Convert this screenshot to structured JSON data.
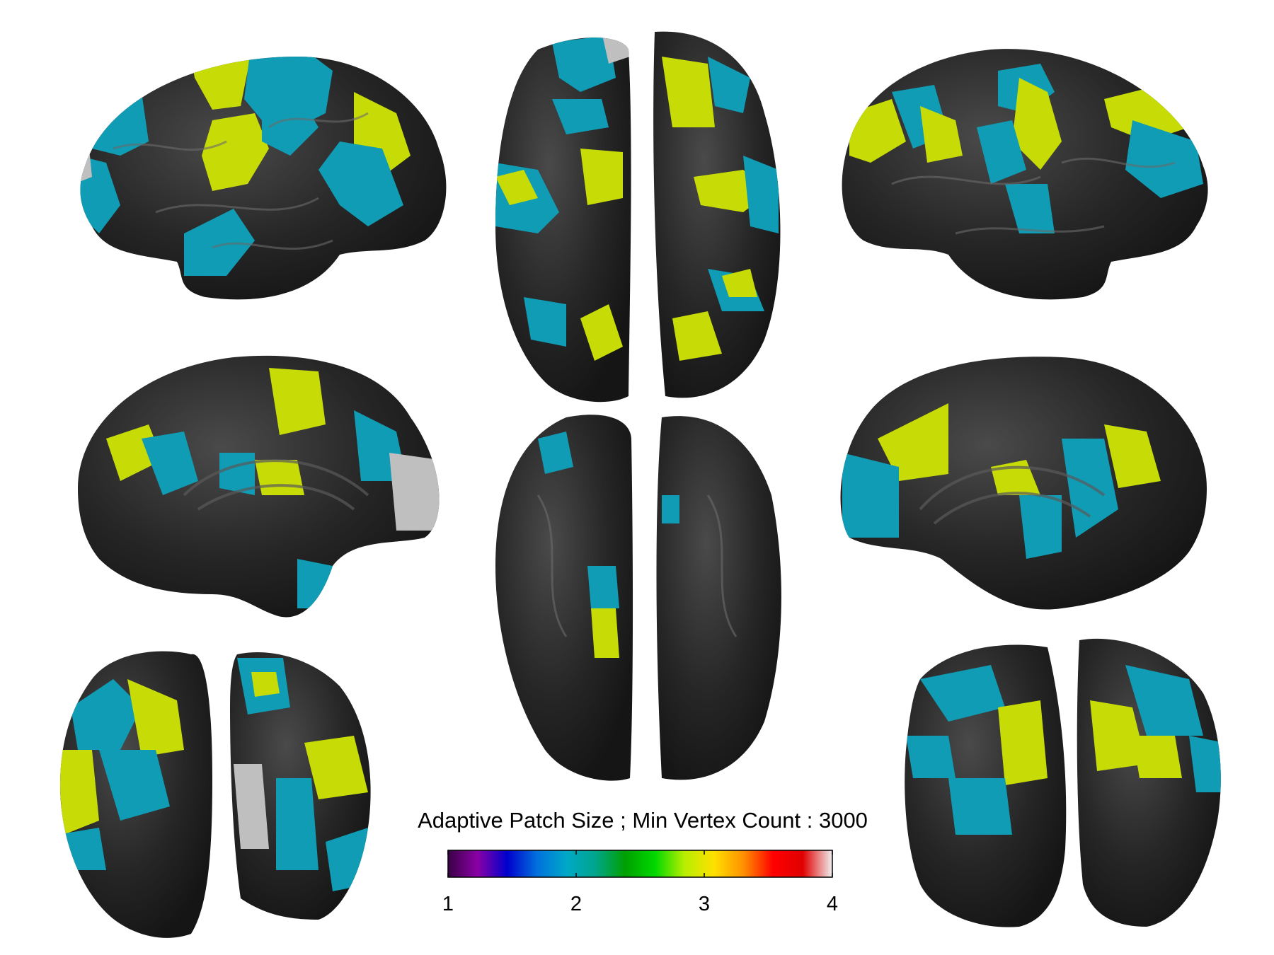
{
  "colorbar": {
    "title": "Adaptive Patch Size ; Min Vertex Count : 3000",
    "ticks": [
      "1",
      "2",
      "3",
      "4"
    ],
    "range": [
      1,
      4
    ],
    "colormap": [
      "#3a0046",
      "#8a00a6",
      "#0000cc",
      "#0070dd",
      "#00a8c8",
      "#00a58a",
      "#00a000",
      "#00d800",
      "#b8ee00",
      "#ffe000",
      "#ff9000",
      "#ff0000",
      "#e00000",
      "#f0f0f0"
    ]
  },
  "colors": {
    "cortex": "#2b2b2b",
    "patch_cyan": "#0f9cb4",
    "patch_yellow": "#c7dc06",
    "patch_gray": "#bfbfbf",
    "background": "#ffffff"
  },
  "views": [
    {
      "name": "lateral-left"
    },
    {
      "name": "superior"
    },
    {
      "name": "lateral-right"
    },
    {
      "name": "medial-left"
    },
    {
      "name": "inferior"
    },
    {
      "name": "medial-right"
    },
    {
      "name": "anterior"
    },
    {
      "name": "posterior"
    }
  ]
}
